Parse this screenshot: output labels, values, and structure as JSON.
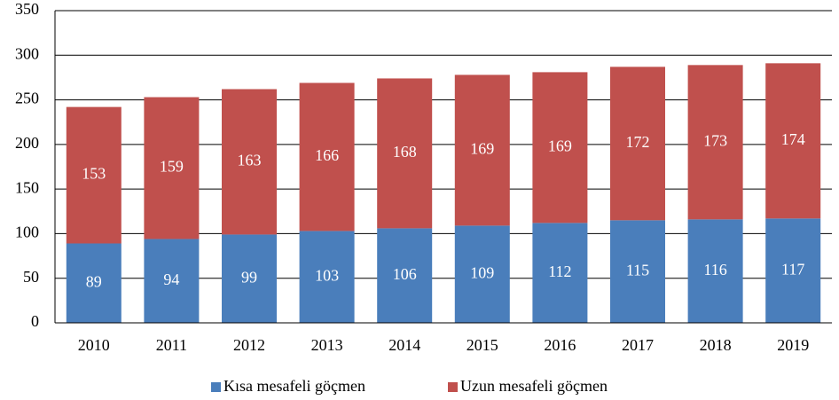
{
  "chart_data": {
    "type": "stacked_bar",
    "categories": [
      "2010",
      "2011",
      "2012",
      "2013",
      "2014",
      "2015",
      "2016",
      "2017",
      "2018",
      "2019"
    ],
    "series": [
      {
        "name": "Kısa mesafeli göçmen",
        "color": "#4a7ebb",
        "values": [
          89,
          94,
          99,
          103,
          106,
          109,
          112,
          115,
          116,
          117
        ]
      },
      {
        "name": "Uzun mesafeli göçmen",
        "color": "#c0504d",
        "values": [
          153,
          159,
          163,
          166,
          168,
          169,
          169,
          172,
          173,
          174
        ]
      }
    ],
    "ylim": [
      0,
      350
    ],
    "yticks": [
      0,
      50,
      100,
      150,
      200,
      250,
      300,
      350
    ],
    "grid": true,
    "legend": "bottom"
  }
}
